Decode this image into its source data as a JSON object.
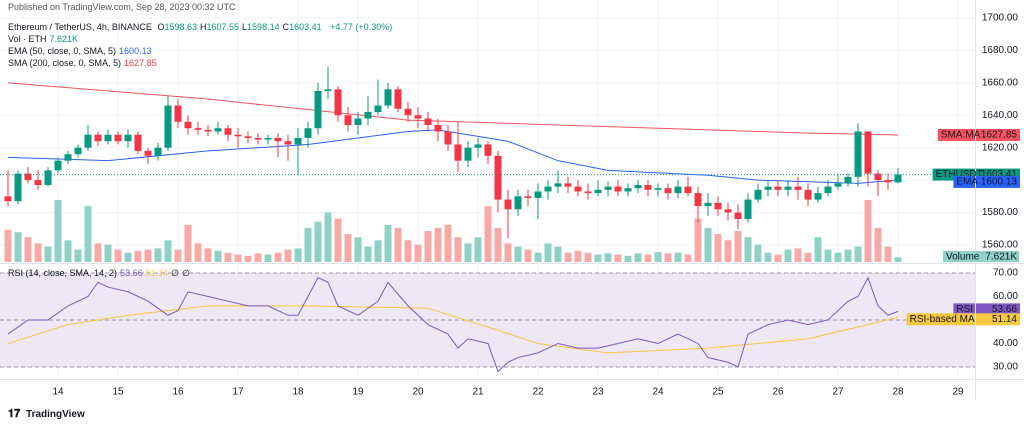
{
  "header": {
    "published": "Published on TradingView.com, Sep 28, 2023 00:32 UTC",
    "symbol": "Ethereum / TetherUS, 4h, BINANCE",
    "ohlc": [
      {
        "label": "O",
        "value": "1598.63"
      },
      {
        "label": "H",
        "value": "1607.55"
      },
      {
        "label": "L",
        "value": "1598.14"
      },
      {
        "label": "C",
        "value": "1603.41"
      }
    ],
    "change": "+4.77 (+0.30%)",
    "indicators": [
      {
        "name": "Vol · ETH",
        "value": "7.621K"
      },
      {
        "name": "EMA (50, close, 0, SMA, 5)",
        "value": "1600.13"
      },
      {
        "name": "SMA (200, close, 0, SMA, 5)",
        "value": "1627.85"
      }
    ],
    "rsi_legend": {
      "name": "RSI (14, close, SMA, 14, 2)",
      "values": [
        "53.66",
        "51.14",
        "∅",
        "∅"
      ]
    }
  },
  "chart_data": [
    {
      "type": "candlestick",
      "xlim": [
        -0.3,
        96.7
      ],
      "ylim": [
        1549.5,
        1708
      ],
      "yticks": [
        {
          "value": 1560,
          "label": "1560.00"
        },
        {
          "value": 1580,
          "label": "1580.00"
        },
        {
          "value": 1600,
          "label": "1600.00"
        },
        {
          "value": 1620,
          "label": "1620.00"
        },
        {
          "value": 1640,
          "label": "1640.00"
        },
        {
          "value": 1660,
          "label": "1660.00"
        },
        {
          "value": 1680,
          "label": "1680.00"
        },
        {
          "value": 1700,
          "label": "1700.00"
        }
      ],
      "grid": true,
      "series": [
        {
          "name": "ETHUSDT",
          "up_color": "#089981",
          "down_color": "#f23645",
          "open": [
            1590,
            1587,
            1604,
            1600,
            1597,
            1606,
            1612,
            1616,
            1620,
            1628,
            1624,
            1628,
            1624,
            1628,
            1618,
            1615,
            1620,
            1646,
            1636,
            1632,
            1631,
            1630,
            1632,
            1628,
            1627,
            1626,
            1625,
            1626,
            1624,
            1622,
            1626,
            1632,
            1655,
            1656,
            1640,
            1634,
            1638,
            1642,
            1646,
            1656,
            1644,
            1640,
            1638,
            1634,
            1630,
            1622,
            1612,
            1620,
            1622,
            1615,
            1588,
            1582,
            1590,
            1589,
            1593,
            1596,
            1598,
            1596,
            1593,
            1592,
            1594,
            1596,
            1593,
            1595,
            1597,
            1594,
            1595,
            1592,
            1596,
            1592,
            1584,
            1586,
            1582,
            1580,
            1576,
            1588,
            1594,
            1596,
            1594,
            1596,
            1594,
            1588,
            1592,
            1596,
            1598,
            1602,
            1630,
            1604,
            1600,
            1598.63
          ],
          "high": [
            1606,
            1606,
            1608,
            1606,
            1608,
            1614,
            1618,
            1622,
            1634,
            1630,
            1631,
            1630,
            1631,
            1630,
            1620,
            1623,
            1652,
            1650,
            1640,
            1636,
            1634,
            1636,
            1634,
            1632,
            1630,
            1629,
            1628,
            1629,
            1628,
            1632,
            1636,
            1660,
            1670,
            1658,
            1645,
            1642,
            1652,
            1662,
            1660,
            1658,
            1648,
            1645,
            1642,
            1638,
            1634,
            1636,
            1624,
            1626,
            1624,
            1618,
            1594,
            1594,
            1594,
            1598,
            1600,
            1606,
            1602,
            1600,
            1598,
            1600,
            1599,
            1600,
            1598,
            1600,
            1600,
            1598,
            1598,
            1600,
            1602,
            1596,
            1592,
            1590,
            1586,
            1585,
            1592,
            1598,
            1600,
            1600,
            1600,
            1602,
            1598,
            1596,
            1600,
            1604,
            1604,
            1635,
            1630,
            1606,
            1604,
            1607.55
          ],
          "low": [
            1584,
            1585,
            1598,
            1594,
            1596,
            1604,
            1610,
            1614,
            1618,
            1621,
            1622,
            1622,
            1620,
            1616,
            1610,
            1612,
            1618,
            1632,
            1628,
            1628,
            1627,
            1628,
            1624,
            1620,
            1623,
            1622,
            1622,
            1614,
            1612,
            1603,
            1620,
            1628,
            1650,
            1636,
            1630,
            1628,
            1634,
            1640,
            1644,
            1642,
            1636,
            1632,
            1630,
            1624,
            1618,
            1605,
            1608,
            1614,
            1610,
            1580,
            1564,
            1578,
            1584,
            1576,
            1588,
            1592,
            1592,
            1590,
            1588,
            1590,
            1590,
            1590,
            1590,
            1592,
            1590,
            1590,
            1588,
            1589,
            1590,
            1574,
            1578,
            1578,
            1575,
            1570,
            1574,
            1586,
            1590,
            1590,
            1590,
            1588,
            1584,
            1586,
            1590,
            1594,
            1596,
            1596,
            1596,
            1590,
            1594,
            1598.14
          ],
          "close": [
            1587,
            1604,
            1600,
            1597,
            1606,
            1612,
            1616,
            1620,
            1628,
            1624,
            1628,
            1624,
            1628,
            1618,
            1615,
            1620,
            1646,
            1636,
            1632,
            1631,
            1630,
            1632,
            1628,
            1627,
            1626,
            1625,
            1626,
            1624,
            1622,
            1626,
            1632,
            1655,
            1656,
            1640,
            1634,
            1638,
            1642,
            1646,
            1656,
            1644,
            1640,
            1638,
            1634,
            1630,
            1622,
            1612,
            1620,
            1622,
            1615,
            1588,
            1582,
            1590,
            1589,
            1593,
            1596,
            1598,
            1596,
            1593,
            1592,
            1594,
            1596,
            1593,
            1595,
            1597,
            1594,
            1595,
            1592,
            1596,
            1592,
            1584,
            1586,
            1582,
            1580,
            1576,
            1588,
            1594,
            1596,
            1594,
            1596,
            1594,
            1588,
            1592,
            1596,
            1598,
            1602,
            1630,
            1604,
            1600,
            1598.63,
            1603.41
          ]
        }
      ],
      "volume": {
        "name": "Volume",
        "up_color": "#8fd0c7",
        "down_color": "#f7a9a7",
        "values": [
          52,
          48,
          40,
          30,
          25,
          100,
          35,
          20,
          90,
          30,
          28,
          20,
          15,
          18,
          20,
          22,
          35,
          20,
          60,
          30,
          22,
          18,
          15,
          12,
          10,
          14,
          12,
          15,
          20,
          22,
          55,
          65,
          80,
          70,
          45,
          40,
          25,
          35,
          60,
          55,
          35,
          28,
          50,
          55,
          60,
          40,
          30,
          40,
          90,
          55,
          30,
          25,
          20,
          15,
          30,
          25,
          15,
          18,
          15,
          12,
          14,
          12,
          10,
          14,
          12,
          16,
          14,
          15,
          12,
          70,
          55,
          45,
          35,
          50,
          40,
          28,
          15,
          12,
          20,
          22,
          15,
          40,
          20,
          15,
          20,
          25,
          100,
          55,
          25,
          7.621
        ]
      },
      "lines": [
        {
          "name": "EMA",
          "color": "#2962ff",
          "x": [
            0,
            10,
            20,
            30,
            40,
            43,
            50,
            55,
            60,
            70,
            75,
            80,
            85,
            89
          ],
          "values": [
            1614,
            1612,
            1618,
            1622,
            1630,
            1631,
            1624,
            1612,
            1606,
            1603,
            1600,
            1599,
            1598,
            1600.13
          ]
        },
        {
          "name": "SMA:MA",
          "color": "#f7525f",
          "x": [
            0,
            20,
            40,
            60,
            80,
            89
          ],
          "values": [
            1660,
            1650,
            1637,
            1633,
            1629,
            1627.85
          ]
        }
      ]
    },
    {
      "type": "line",
      "xlim": [
        -0.3,
        96.7
      ],
      "ylim": [
        25.3,
        73.4
      ],
      "yticks": [
        {
          "value": 30,
          "label": "30.00"
        },
        {
          "value": 40,
          "label": "40.00"
        },
        {
          "value": 60,
          "label": "60.00"
        },
        {
          "value": 70,
          "label": "70.00"
        }
      ],
      "levels": [
        70,
        50,
        30
      ],
      "band_color": "#ede7f6",
      "xticks": [
        {
          "value": 5,
          "label": "14"
        },
        {
          "value": 11,
          "label": "15"
        },
        {
          "value": 17,
          "label": "16"
        },
        {
          "value": 23,
          "label": "17"
        },
        {
          "value": 29,
          "label": "18"
        },
        {
          "value": 35,
          "label": "19"
        },
        {
          "value": 41,
          "label": "20"
        },
        {
          "value": 47,
          "label": "21"
        },
        {
          "value": 53,
          "label": "22"
        },
        {
          "value": 59,
          "label": "23"
        },
        {
          "value": 65,
          "label": "24"
        },
        {
          "value": 71,
          "label": "25"
        },
        {
          "value": 77,
          "label": "26"
        },
        {
          "value": 83,
          "label": "27"
        },
        {
          "value": 89,
          "label": "28"
        },
        {
          "value": 95,
          "label": "29"
        }
      ],
      "series": [
        {
          "name": "RSI",
          "color": "#7e57c2",
          "x": [
            0,
            2,
            4,
            6,
            8,
            9,
            10,
            12,
            14,
            16,
            17,
            18,
            20,
            22,
            24,
            26,
            28,
            29,
            30,
            31,
            32,
            33,
            35,
            37,
            38,
            40,
            42,
            44,
            45,
            46,
            48,
            49,
            50,
            51,
            53,
            55,
            57,
            59,
            61,
            63,
            65,
            67,
            69,
            70,
            72,
            73,
            74,
            76,
            78,
            80,
            82,
            84,
            85,
            86,
            87,
            88,
            89
          ],
          "values": [
            44,
            50,
            50,
            56,
            60,
            66,
            64,
            62,
            58,
            52,
            54,
            62,
            60,
            58,
            56,
            56,
            52,
            52,
            60,
            68,
            66,
            56,
            52,
            58,
            66,
            56,
            48,
            44,
            38,
            42,
            40,
            28,
            32,
            34,
            36,
            40,
            38,
            38,
            40,
            42,
            40,
            44,
            40,
            34,
            32,
            30,
            44,
            48,
            50,
            48,
            50,
            58,
            60,
            68,
            56,
            52,
            53.66
          ]
        },
        {
          "name": "RSI-based MA",
          "color": "#f5c842",
          "x": [
            0,
            6,
            12,
            20,
            30,
            42,
            48,
            53,
            60,
            70,
            80,
            86,
            89
          ],
          "values": [
            40,
            48,
            52,
            56,
            56,
            55,
            47,
            40,
            36,
            38,
            42,
            48,
            51.14
          ]
        }
      ]
    }
  ],
  "footer": {
    "brand": "TradingView"
  }
}
